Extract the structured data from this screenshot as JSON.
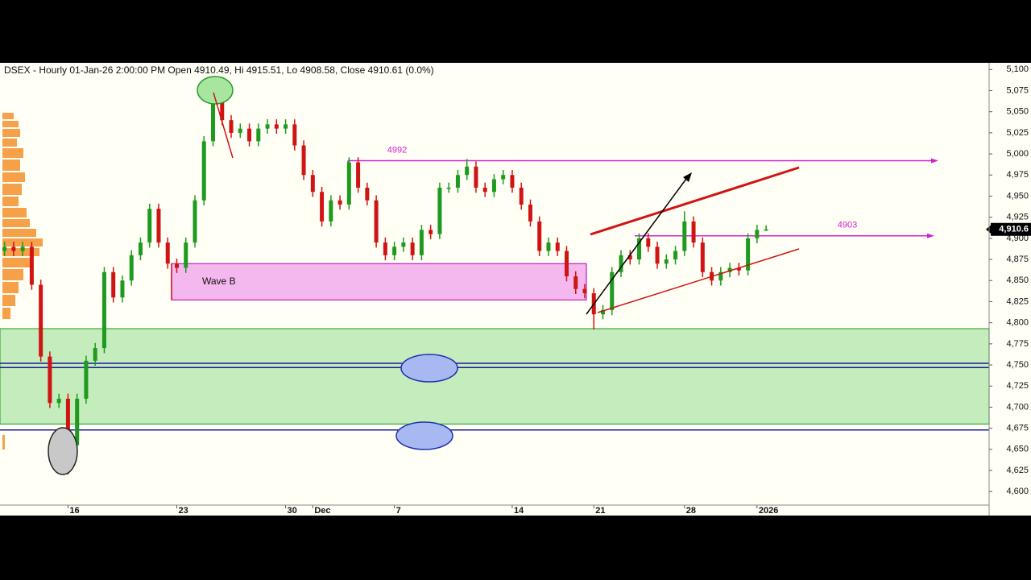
{
  "chart_data": {
    "type": "candlestick",
    "title": "DSEX - Hourly 01-Jan-26 2:00:00 PM Open 4910.49, Hi 4915.51, Lo 4908.58, Close 4910.61 (0.0%)",
    "open": [
      4885,
      4890,
      4885,
      4890,
      4845,
      4760,
      4705,
      4710,
      4655,
      4710,
      4755,
      4770,
      4860,
      4830,
      4850,
      4880,
      4895,
      4935,
      4895,
      4870,
      4865,
      4895,
      4945,
      5015,
      5065,
      5040,
      5025,
      5030,
      5015,
      5030,
      5035,
      5030,
      5035,
      5010,
      4975,
      4955,
      4920,
      4945,
      4940,
      4990,
      4960,
      4945,
      4895,
      4880,
      4890,
      4895,
      4880,
      4910,
      4905,
      4960,
      4960,
      4975,
      4985,
      4960,
      4955,
      4970,
      4975,
      4960,
      4940,
      4920,
      4885,
      4895,
      4885,
      4855,
      4840,
      4835,
      4810,
      4815,
      4860,
      4880,
      4875,
      4900,
      4890,
      4870,
      4875,
      4885,
      4920,
      4895,
      4860,
      4850,
      4860,
      4865,
      4862,
      4900,
      4910.49
    ],
    "high": [
      4896,
      4896,
      4896,
      4896,
      4851,
      4766,
      4716,
      4716,
      4716,
      4761,
      4776,
      4866,
      4866,
      4856,
      4886,
      4901,
      4941,
      4941,
      4901,
      4876,
      4901,
      4951,
      5021,
      5075,
      5071,
      5046,
      5036,
      5036,
      5036,
      5041,
      5041,
      5041,
      5041,
      5016,
      4981,
      4961,
      4951,
      4951,
      4996,
      4996,
      4966,
      4951,
      4901,
      4896,
      4901,
      4901,
      4916,
      4916,
      4966,
      4966,
      4981,
      4994,
      4991,
      4966,
      4976,
      4981,
      4981,
      4966,
      4946,
      4926,
      4901,
      4901,
      4891,
      4861,
      4846,
      4841,
      4821,
      4866,
      4886,
      4886,
      4906,
      4906,
      4896,
      4881,
      4891,
      4932,
      4926,
      4901,
      4866,
      4866,
      4871,
      4871,
      4906,
      4916,
      4915.51
    ],
    "low": [
      4879,
      4879,
      4879,
      4839,
      4754,
      4699,
      4699,
      4620,
      4649,
      4704,
      4749,
      4764,
      4824,
      4824,
      4844,
      4874,
      4889,
      4889,
      4864,
      4859,
      4859,
      4889,
      4939,
      5009,
      5034,
      5019,
      5019,
      5009,
      5009,
      5024,
      5024,
      5024,
      5004,
      4969,
      4949,
      4914,
      4914,
      4934,
      4934,
      4954,
      4939,
      4889,
      4874,
      4874,
      4884,
      4874,
      4874,
      4899,
      4899,
      4954,
      4954,
      4969,
      4954,
      4949,
      4949,
      4964,
      4954,
      4934,
      4914,
      4879,
      4879,
      4879,
      4849,
      4834,
      4829,
      4792,
      4804,
      4809,
      4854,
      4869,
      4869,
      4884,
      4864,
      4864,
      4869,
      4879,
      4889,
      4854,
      4844,
      4844,
      4854,
      4856,
      4856,
      4894,
      4908.58
    ],
    "close": [
      4890,
      4885,
      4890,
      4845,
      4760,
      4705,
      4710,
      4655,
      4710,
      4755,
      4770,
      4860,
      4830,
      4850,
      4880,
      4895,
      4935,
      4895,
      4870,
      4865,
      4895,
      4945,
      5015,
      5065,
      5040,
      5025,
      5030,
      5015,
      5030,
      5035,
      5030,
      5035,
      5010,
      4975,
      4955,
      4920,
      4945,
      4940,
      4990,
      4960,
      4945,
      4895,
      4880,
      4890,
      4895,
      4880,
      4910,
      4905,
      4960,
      4960,
      4975,
      4985,
      4960,
      4955,
      4970,
      4975,
      4960,
      4940,
      4920,
      4885,
      4895,
      4885,
      4855,
      4840,
      4835,
      4810,
      4815,
      4860,
      4880,
      4875,
      4900,
      4890,
      4870,
      4875,
      4885,
      4920,
      4895,
      4860,
      4850,
      4860,
      4865,
      4862,
      4900,
      4910,
      4910.61
    ],
    "up_color": "#1e9a1e",
    "down_color": "#d01414",
    "xlim": [
      -0.5,
      108.6
    ],
    "xticks": [
      {
        "value": 7,
        "label": "16"
      },
      {
        "value": 19,
        "label": "23"
      },
      {
        "value": 31,
        "label": "30"
      },
      {
        "value": 34,
        "label": "Dec"
      },
      {
        "value": 43,
        "label": "7"
      },
      {
        "value": 56,
        "label": "14"
      },
      {
        "value": 65,
        "label": "21"
      },
      {
        "value": 75,
        "label": "28"
      },
      {
        "value": 83,
        "label": "2026"
      }
    ],
    "ylim": [
      4584,
      5106
    ],
    "yticks": [
      {
        "value": 4600,
        "label": "4,600"
      },
      {
        "value": 4625,
        "label": "4,625"
      },
      {
        "value": 4650,
        "label": "4,650"
      },
      {
        "value": 4675,
        "label": "4,675"
      },
      {
        "value": 4700,
        "label": "4,700"
      },
      {
        "value": 4725,
        "label": "4,725"
      },
      {
        "value": 4750,
        "label": "4,750"
      },
      {
        "value": 4775,
        "label": "4,775"
      },
      {
        "value": 4800,
        "label": "4,800"
      },
      {
        "value": 4825,
        "label": "4,825"
      },
      {
        "value": 4850,
        "label": "4,850"
      },
      {
        "value": 4875,
        "label": "4,875"
      },
      {
        "value": 4900,
        "label": "4,900"
      },
      {
        "value": 4925,
        "label": "4,925"
      },
      {
        "value": 4950,
        "label": "4,950"
      },
      {
        "value": 4975,
        "label": "4,975"
      },
      {
        "value": 5000,
        "label": "5,000"
      },
      {
        "value": 5025,
        "label": "5,025"
      },
      {
        "value": 5050,
        "label": "5,050"
      },
      {
        "value": 5075,
        "label": "5,075"
      },
      {
        "value": 5100,
        "label": "5,100"
      }
    ],
    "last_price": {
      "value": 4910.6,
      "label": "4,910.6"
    },
    "levels": [
      4992,
      4903
    ],
    "level_color": "#d020d0",
    "zones": [
      {
        "range": [
          4827,
          4870
        ],
        "label": "Wave B",
        "color": "#f4b8ee"
      },
      {
        "range": [
          4680,
          4793
        ],
        "color": "#c4ecbc"
      }
    ],
    "hlines": [
      4752,
      4747,
      4673
    ],
    "hline_color": "#1a1a9a"
  }
}
